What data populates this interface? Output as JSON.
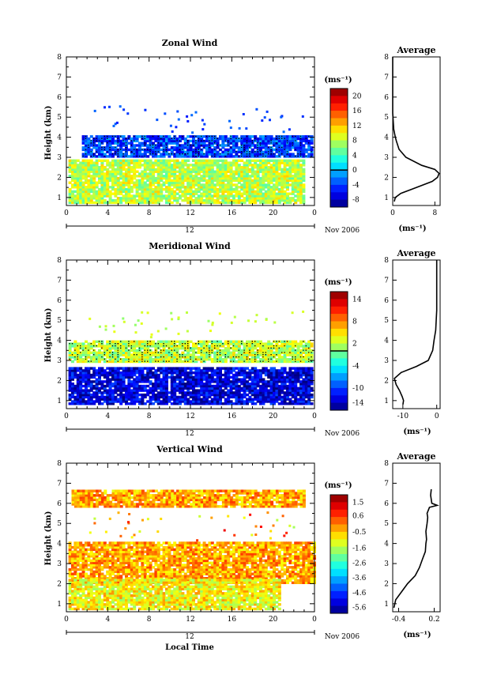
{
  "x_axis_label": "Local Time",
  "time_ticks": [
    "0",
    "4",
    "8",
    "12",
    "16",
    "20",
    "0"
  ],
  "day_label": "12",
  "month_label": "Nov 2006",
  "y_axis_label": "Height (km)",
  "height_ticks": [
    "1",
    "2",
    "3",
    "4",
    "5",
    "6",
    "7",
    "8"
  ],
  "unit_label": "(ms⁻¹)",
  "profile_unit_label": "(ms⁻¹)",
  "chart_data": [
    {
      "type": "heatmap",
      "title": "Zonal Wind",
      "xlabel": "",
      "ylabel": "Height (km)",
      "xlim": [
        0,
        24
      ],
      "ylim": [
        0.6,
        8
      ],
      "colorbar": {
        "ticks": [
          "20",
          "16",
          "12",
          "8",
          "4",
          "0",
          "-4",
          "-8"
        ],
        "range": [
          -10,
          22
        ],
        "zero_line": 0
      },
      "layers": [
        {
          "z": [
            3.0,
            4.0
          ],
          "x": [
            1.5,
            23.8
          ],
          "value": -4,
          "contoured": true
        },
        {
          "z": [
            0.7,
            2.9
          ],
          "x": [
            0.2,
            23.0
          ],
          "value": 8
        }
      ],
      "profile": {
        "title": "Average",
        "xlim": [
          0,
          9
        ],
        "xticks": [
          "0",
          "8"
        ],
        "x": [
          0,
          0,
          0,
          0.2,
          0.5,
          0.7,
          1.2,
          2.5,
          5.5,
          8.0,
          8.8,
          8.5,
          7.5,
          5.5,
          3.5,
          1.5,
          0.5,
          0.3
        ],
        "z": [
          8.0,
          6.0,
          5.2,
          4.4,
          4.0,
          3.8,
          3.4,
          3.0,
          2.6,
          2.4,
          2.2,
          2.0,
          1.8,
          1.6,
          1.4,
          1.2,
          1.0,
          0.8
        ]
      }
    },
    {
      "type": "heatmap",
      "title": "Meridional Wind",
      "xlabel": "",
      "ylabel": "Height (km)",
      "xlim": [
        0,
        24
      ],
      "ylim": [
        0.6,
        8
      ],
      "colorbar": {
        "ticks": [
          "14",
          "8",
          "2",
          "-4",
          "-10",
          "-14"
        ],
        "range": [
          -16,
          16
        ],
        "zero_line": 0
      },
      "layers": [
        {
          "z": [
            2.9,
            3.9
          ],
          "x": [
            0.2,
            23.8
          ],
          "value": 2,
          "contoured": true
        },
        {
          "z": [
            0.8,
            2.6
          ],
          "x": [
            0.2,
            23.8
          ],
          "value": -13
        }
      ],
      "profile": {
        "title": "Average",
        "xlim": [
          -13,
          1
        ],
        "xticks": [
          "-10",
          "0"
        ],
        "x": [
          0,
          0,
          0,
          -0.3,
          -0.8,
          -1.2,
          -2.5,
          -6,
          -10.5,
          -12.5,
          -12,
          -11,
          -10.2,
          -9.8,
          -10
        ],
        "z": [
          8.0,
          6.5,
          5.5,
          4.5,
          4.0,
          3.5,
          3.0,
          2.7,
          2.4,
          2.1,
          1.8,
          1.5,
          1.2,
          1.0,
          0.8
        ]
      }
    },
    {
      "type": "heatmap",
      "title": "Vertical Wind",
      "xlabel": "Local Time",
      "ylabel": "Height (km)",
      "xlim": [
        0,
        24
      ],
      "ylim": [
        0.6,
        8
      ],
      "colorbar": {
        "ticks": [
          "1.5",
          "0.6",
          "-0.5",
          "-1.6",
          "-2.6",
          "-3.6",
          "-4.6",
          "-5.6"
        ],
        "range": [
          -6,
          2
        ]
      },
      "layers": [
        {
          "z": [
            2.0,
            4.0
          ],
          "x": [
            0.2,
            24.0
          ],
          "value": -0.3
        },
        {
          "z": [
            0.7,
            2.2
          ],
          "x": [
            0.2,
            20.5
          ],
          "value": -1.0
        },
        {
          "z": [
            5.8,
            6.6
          ],
          "x": [
            0.5,
            23.0
          ],
          "value": -0.3
        }
      ],
      "profile": {
        "title": "Average",
        "xlim": [
          -0.5,
          0.3
        ],
        "xticks": [
          "-0.4",
          "0.2"
        ],
        "x": [
          0.15,
          0.14,
          0.16,
          0.25,
          0.12,
          0.08,
          0.09,
          0.08,
          0.06,
          0.07,
          0.06,
          0.05,
          0.0,
          -0.05,
          -0.12,
          -0.25,
          -0.35,
          -0.45,
          -0.48
        ],
        "z": [
          6.7,
          6.4,
          6.0,
          5.9,
          5.8,
          5.5,
          5.3,
          5.0,
          4.6,
          4.2,
          4.0,
          3.6,
          3.2,
          2.8,
          2.4,
          2.0,
          1.6,
          1.2,
          0.8
        ]
      }
    }
  ]
}
